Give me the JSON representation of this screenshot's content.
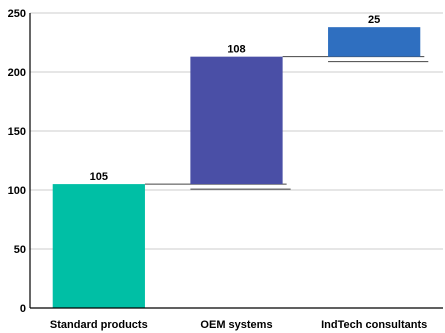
{
  "chart_data": {
    "type": "bar",
    "subtype": "waterfall",
    "categories": [
      "Standard products",
      "OEM systems",
      "IndTech consultants"
    ],
    "values": [
      105,
      108,
      25
    ],
    "base": [
      0,
      105,
      213
    ],
    "colors": [
      "#00bfa5",
      "#4a4fa6",
      "#2f6fc0"
    ],
    "data_labels": [
      "105",
      "108",
      "25"
    ],
    "ylim": [
      0,
      250
    ],
    "yticks": [
      0,
      50,
      100,
      150,
      200,
      250
    ],
    "ytick_labels": [
      "0",
      "50",
      "100",
      "150",
      "200",
      "250"
    ],
    "grid": true,
    "title": "",
    "xlabel": "",
    "ylabel": ""
  }
}
